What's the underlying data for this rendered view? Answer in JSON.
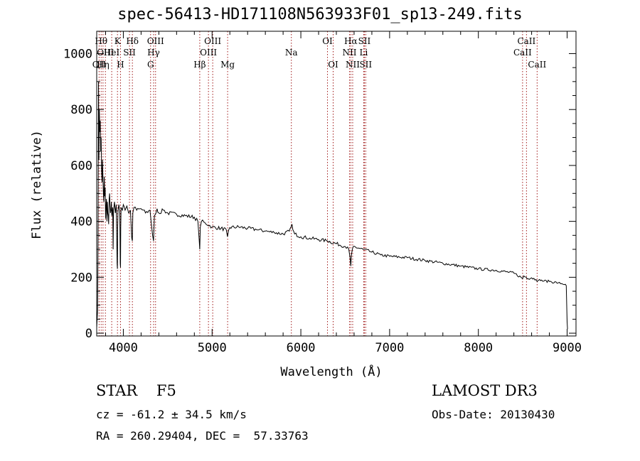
{
  "chart_data": {
    "type": "line",
    "title": "spec-56413-HD171108N563933F01_sp13-249.fits",
    "xlabel": "Wavelength (Å)",
    "ylabel": "Flux (relative)",
    "xlim": [
      3700,
      9100
    ],
    "ylim": [
      -10,
      1080
    ],
    "xticks": [
      4000,
      5000,
      6000,
      7000,
      8000,
      9000
    ],
    "yticks": [
      0,
      200,
      400,
      600,
      800,
      1000
    ],
    "series": [
      {
        "name": "spectrum",
        "x": [
          3700,
          3710,
          3715,
          3720,
          3725,
          3730,
          3735,
          3740,
          3745,
          3750,
          3755,
          3760,
          3765,
          3770,
          3775,
          3780,
          3785,
          3790,
          3795,
          3800,
          3805,
          3810,
          3815,
          3820,
          3825,
          3830,
          3835,
          3840,
          3845,
          3850,
          3855,
          3860,
          3865,
          3870,
          3880,
          3885,
          3890,
          3900,
          3910,
          3920,
          3930,
          3933,
          3936,
          3940,
          3950,
          3960,
          3965,
          3968,
          3971,
          3975,
          3990,
          4000,
          4020,
          4040,
          4060,
          4080,
          4095,
          4101,
          4107,
          4120,
          4150,
          4200,
          4250,
          4300,
          4330,
          4340,
          4350,
          4380,
          4400,
          4450,
          4500,
          4600,
          4700,
          4800,
          4840,
          4855,
          4861,
          4867,
          4880,
          4920,
          5000,
          5100,
          5160,
          5173,
          5185,
          5200,
          5300,
          5400,
          5500,
          5600,
          5700,
          5800,
          5870,
          5890,
          5900,
          5910,
          5930,
          6000,
          6100,
          6200,
          6300,
          6400,
          6500,
          6540,
          6555,
          6563,
          6570,
          6590,
          6700,
          6800,
          6900,
          7000,
          7200,
          7400,
          7600,
          7800,
          8000,
          8200,
          8400,
          8480,
          8498,
          8510,
          8540,
          8560,
          8600,
          8650,
          8662,
          8680,
          8700,
          8800,
          8900,
          8980,
          8990,
          9000,
          9005
        ],
        "values": [
          20,
          80,
          330,
          900,
          620,
          800,
          720,
          760,
          650,
          700,
          580,
          540,
          620,
          560,
          500,
          470,
          560,
          490,
          520,
          410,
          450,
          480,
          400,
          470,
          430,
          420,
          390,
          480,
          500,
          460,
          430,
          440,
          470,
          420,
          450,
          300,
          440,
          470,
          430,
          460,
          250,
          230,
          380,
          440,
          460,
          430,
          250,
          235,
          380,
          450,
          440,
          460,
          440,
          455,
          430,
          440,
          340,
          330,
          430,
          450,
          440,
          445,
          430,
          440,
          350,
          330,
          420,
          445,
          430,
          440,
          430,
          425,
          420,
          415,
          400,
          330,
          300,
          380,
          400,
          395,
          380,
          375,
          370,
          345,
          368,
          378,
          380,
          375,
          370,
          365,
          360,
          355,
          365,
          380,
          390,
          370,
          355,
          345,
          340,
          335,
          330,
          320,
          310,
          300,
          270,
          240,
          280,
          310,
          300,
          290,
          280,
          275,
          270,
          260,
          250,
          240,
          230,
          225,
          215,
          200,
          195,
          205,
          200,
          195,
          198,
          192,
          185,
          190,
          188,
          185,
          180,
          175,
          170,
          40,
          15
        ]
      }
    ],
    "lines": [
      {
        "wl": 3727,
        "lbl": "OII",
        "row": 3
      },
      {
        "wl": 3750,
        "lbl": "Hθ",
        "row": 1
      },
      {
        "wl": 3771,
        "lbl": "Hη",
        "row": 3
      },
      {
        "wl": 3798,
        "lbl": "OIII",
        "row": 2
      },
      {
        "wl": 3869,
        "lbl": "HeI",
        "row": 2
      },
      {
        "wl": 3934,
        "lbl": "K",
        "row": 1
      },
      {
        "wl": 3968,
        "lbl": "H",
        "row": 3
      },
      {
        "wl": 4069,
        "lbl": "SII",
        "row": 2
      },
      {
        "wl": 4102,
        "lbl": "Hδ",
        "row": 1
      },
      {
        "wl": 4307,
        "lbl": "G",
        "row": 3
      },
      {
        "wl": 4341,
        "lbl": "Hγ",
        "row": 2
      },
      {
        "wl": 4363,
        "lbl": "OIII",
        "row": 1
      },
      {
        "wl": 4861,
        "lbl": "Hβ",
        "row": 3
      },
      {
        "wl": 4959,
        "lbl": "OIII",
        "row": 2
      },
      {
        "wl": 5007,
        "lbl": "OIII",
        "row": 1
      },
      {
        "wl": 5175,
        "lbl": "Mg",
        "row": 3
      },
      {
        "wl": 5893,
        "lbl": "Na",
        "row": 2
      },
      {
        "wl": 6300,
        "lbl": "OI",
        "row": 1
      },
      {
        "wl": 6364,
        "lbl": "OI",
        "row": 3
      },
      {
        "wl": 6548,
        "lbl": "NII",
        "row": 2
      },
      {
        "wl": 6563,
        "lbl": "Hα",
        "row": 1
      },
      {
        "wl": 6584,
        "lbl": "NII",
        "row": 3
      },
      {
        "wl": 6708,
        "lbl": "Li",
        "row": 2
      },
      {
        "wl": 6716,
        "lbl": "SII",
        "row": 1
      },
      {
        "wl": 6731,
        "lbl": "SII",
        "row": 3
      },
      {
        "wl": 8498,
        "lbl": "CaII",
        "row": 2
      },
      {
        "wl": 8542,
        "lbl": "CaII",
        "row": 1
      },
      {
        "wl": 8662,
        "lbl": "CaII",
        "row": 3
      }
    ]
  },
  "info": {
    "object_line": "STAR    F5",
    "survey": "LAMOST DR3",
    "cz": "cz = -61.2 ± 34.5 km/s",
    "obs_date": "Obs-Date: 20130430",
    "radec": "RA = 260.29404, DEC =  57.33763"
  },
  "colors": {
    "line": "#000000",
    "marker": "#a01818",
    "background": "#ffffff"
  }
}
